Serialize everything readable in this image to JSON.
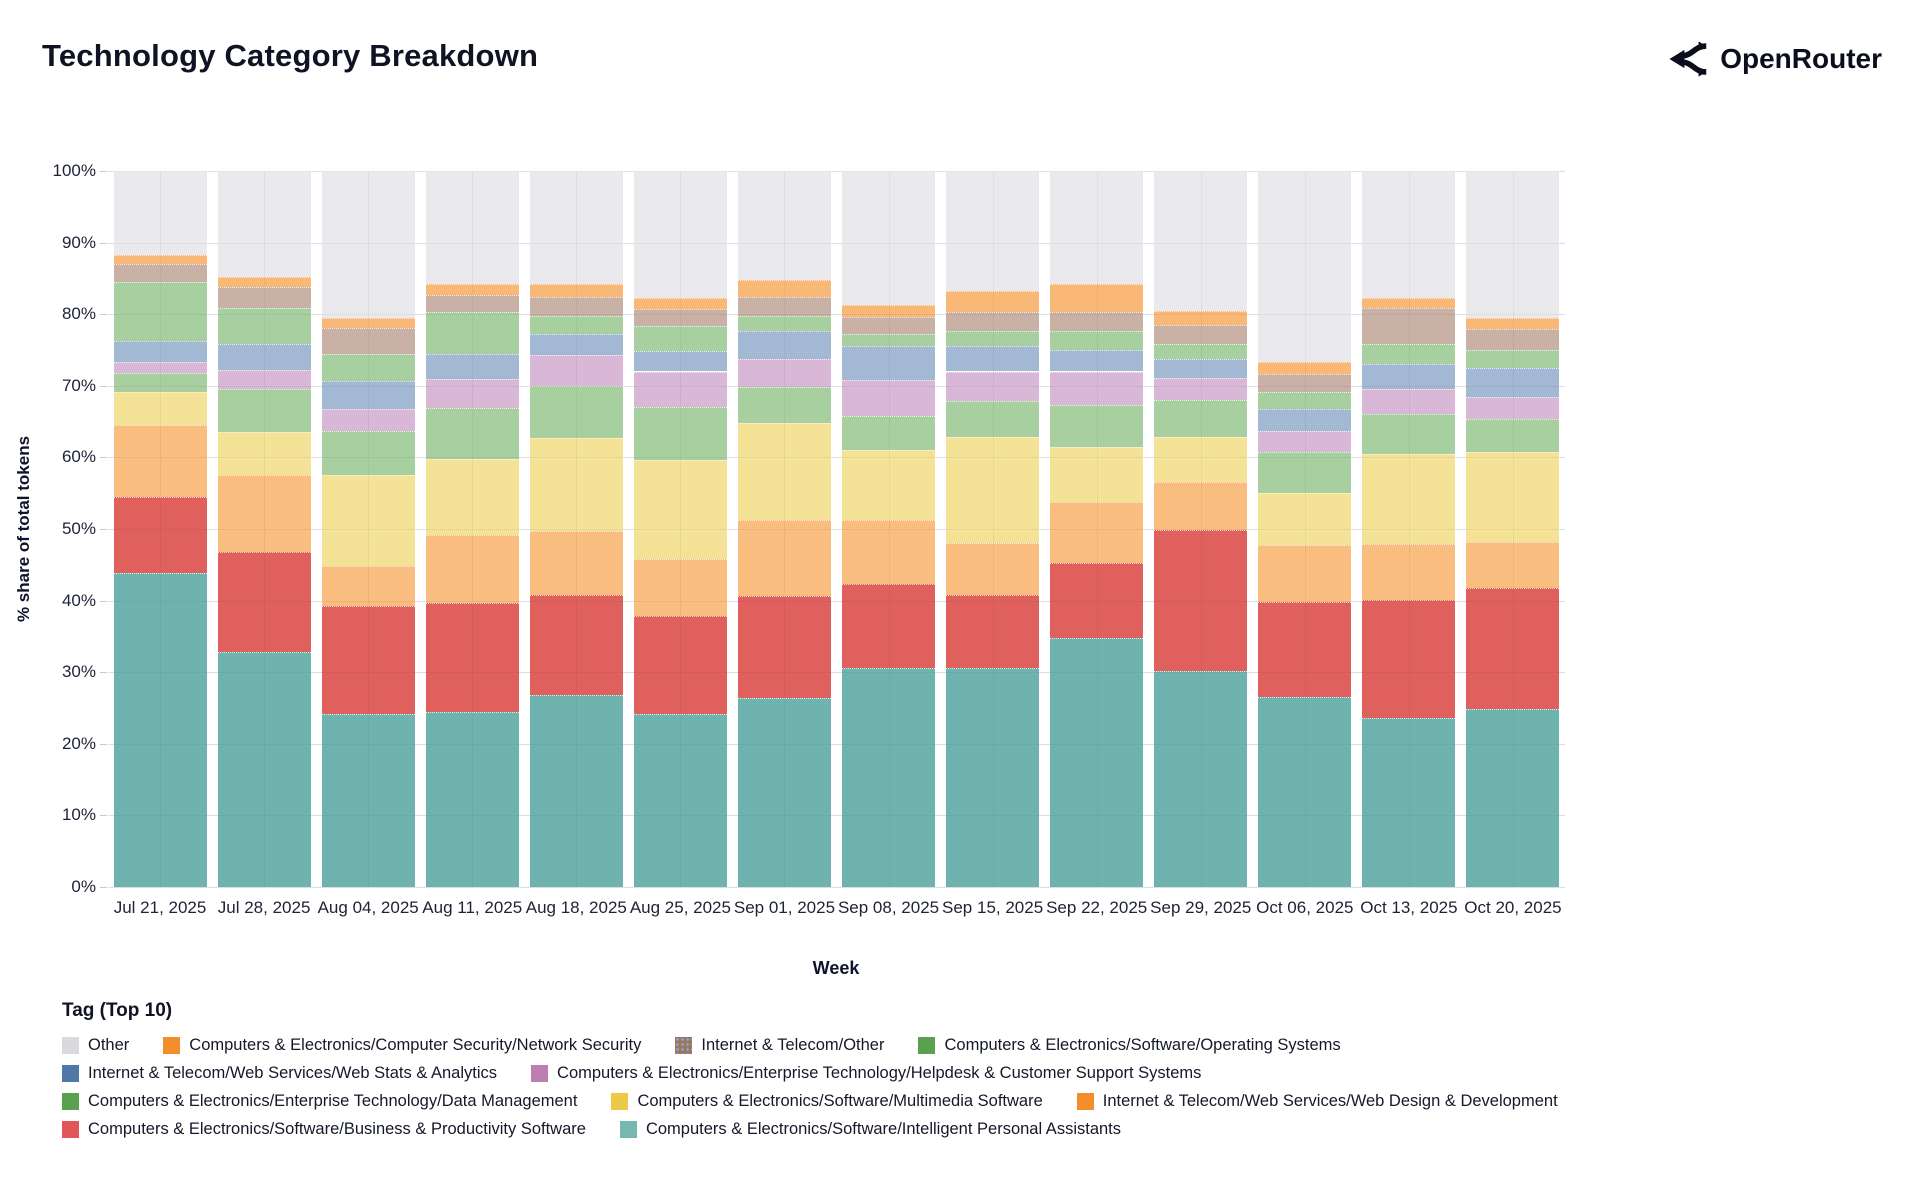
{
  "header": {
    "title": "Technology Category Breakdown",
    "brand": "OpenRouter"
  },
  "axes": {
    "y_label": "% share of total tokens",
    "y_ticks": [
      "100%",
      "90%",
      "80%",
      "70%",
      "60%",
      "50%",
      "40%",
      "30%",
      "20%",
      "10%",
      "0%"
    ],
    "x_label": "Week"
  },
  "legend": {
    "title": "Tag (Top 10)",
    "rows": [
      [
        "other",
        "ns",
        "it",
        "os"
      ],
      [
        "ws",
        "hd"
      ],
      [
        "dm",
        "mm",
        "wd"
      ],
      [
        "bp",
        "ipa"
      ]
    ]
  },
  "chart_data": {
    "type": "bar",
    "subtype": "stacked-100",
    "title": "Technology Category Breakdown",
    "xlabel": "Week",
    "ylabel": "% share of total tokens",
    "ylim": [
      0,
      100
    ],
    "grid": true,
    "legend_position": "bottom",
    "categories": [
      "Jul 21, 2025",
      "Jul 28, 2025",
      "Aug 04, 2025",
      "Aug 11, 2025",
      "Aug 18, 2025",
      "Aug 25, 2025",
      "Sep 01, 2025",
      "Sep 08, 2025",
      "Sep 15, 2025",
      "Sep 22, 2025",
      "Sep 29, 2025",
      "Oct 06, 2025",
      "Oct 13, 2025",
      "Oct 20, 2025"
    ],
    "series": [
      {
        "key": "ipa",
        "name": "Computers & Electronics/Software/Intelligent Personal Assistants",
        "color": "#6fb3ae",
        "legend_color": "#76b7b2",
        "pattern": "none",
        "values": [
          43.8,
          32.8,
          24.2,
          24.4,
          26.8,
          24.2,
          26.4,
          30.6,
          30.6,
          34.8,
          30.1,
          26.5,
          23.6,
          24.8
        ]
      },
      {
        "key": "bp",
        "name": "Computers & Electronics/Software/Business & Productivity Software",
        "color": "#e0605d",
        "legend_color": "#e15759",
        "pattern": "none",
        "values": [
          10.7,
          14.0,
          15.1,
          15.2,
          14.0,
          13.7,
          14.3,
          11.7,
          10.2,
          10.4,
          19.8,
          13.3,
          16.5,
          17.0
        ]
      },
      {
        "key": "wd",
        "name": "Internet & Telecom/Web Services/Web Design & Development",
        "color": "#f9bd7f",
        "legend_color": "#f28e2b",
        "pattern": "none",
        "values": [
          10.0,
          10.7,
          5.5,
          9.6,
          8.9,
          7.9,
          10.5,
          9.0,
          7.2,
          8.6,
          6.7,
          8.0,
          7.8,
          6.4
        ]
      },
      {
        "key": "mm",
        "name": "Computers & Electronics/Software/Multimedia Software",
        "color": "#f4e397",
        "legend_color": "#edc948",
        "pattern": "none",
        "values": [
          4.7,
          6.1,
          12.7,
          10.6,
          13.0,
          13.8,
          13.6,
          9.7,
          14.9,
          7.6,
          6.3,
          7.2,
          12.6,
          12.6
        ]
      },
      {
        "key": "dm",
        "name": "Computers & Electronics/Enterprise Technology/Data Management",
        "color": "#a8cf9f",
        "legend_color": "#59a14f",
        "pattern": "none",
        "values": [
          2.6,
          6.0,
          6.2,
          7.1,
          7.3,
          7.5,
          5.1,
          4.8,
          5.0,
          5.9,
          5.1,
          5.7,
          5.5,
          4.6
        ]
      },
      {
        "key": "hd",
        "name": "Computers & Electronics/Enterprise Technology/Helpdesk & Customer Support Systems",
        "color": "#d9b7d7",
        "legend_color": "#bd7eb1",
        "pattern": "dots",
        "values": [
          1.5,
          2.6,
          3.1,
          4.0,
          4.3,
          4.9,
          3.9,
          5.0,
          4.1,
          4.7,
          3.1,
          3.0,
          3.5,
          3.1
        ]
      },
      {
        "key": "ws",
        "name": "Internet & Telecom/Web Services/Web Stats & Analytics",
        "color": "#a2b8d3",
        "legend_color": "#4e79a7",
        "pattern": "none",
        "values": [
          2.9,
          3.7,
          3.9,
          3.5,
          2.9,
          2.8,
          3.8,
          4.8,
          3.6,
          3.0,
          2.7,
          3.1,
          3.5,
          4.0
        ]
      },
      {
        "key": "os",
        "name": "Computers & Electronics/Software/Operating Systems",
        "color": "#a8cf9f",
        "legend_color": "#59a14f",
        "pattern": "none",
        "values": [
          8.3,
          5.0,
          3.7,
          5.9,
          2.5,
          3.5,
          2.1,
          1.7,
          2.0,
          2.6,
          2.0,
          2.4,
          2.8,
          2.5
        ]
      },
      {
        "key": "it",
        "name": "Internet & Telecom/Other",
        "color": "#c9b2a5",
        "legend_color": "#9d7660",
        "pattern": "dots-soft",
        "legend_pattern": "dots",
        "values": [
          2.5,
          2.9,
          3.7,
          2.4,
          2.7,
          2.4,
          2.7,
          2.3,
          2.7,
          2.7,
          2.7,
          2.5,
          5.0,
          3.0
        ]
      },
      {
        "key": "ns",
        "name": "Computers & Electronics/Computer Security/Network Security",
        "color": "#f9b876",
        "legend_color": "#f28e2b",
        "pattern": "none",
        "values": [
          1.3,
          1.4,
          1.4,
          1.5,
          1.8,
          1.5,
          2.4,
          1.7,
          2.9,
          3.9,
          1.9,
          1.6,
          1.5,
          1.5
        ]
      },
      {
        "key": "other",
        "name": "Other",
        "color": "#e9e9ee",
        "legend_color": "#d9d9de",
        "pattern": "none",
        "values": [
          11.7,
          14.8,
          20.5,
          15.8,
          15.8,
          17.8,
          15.2,
          18.7,
          16.8,
          15.8,
          19.6,
          26.7,
          17.7,
          20.5
        ]
      }
    ]
  }
}
